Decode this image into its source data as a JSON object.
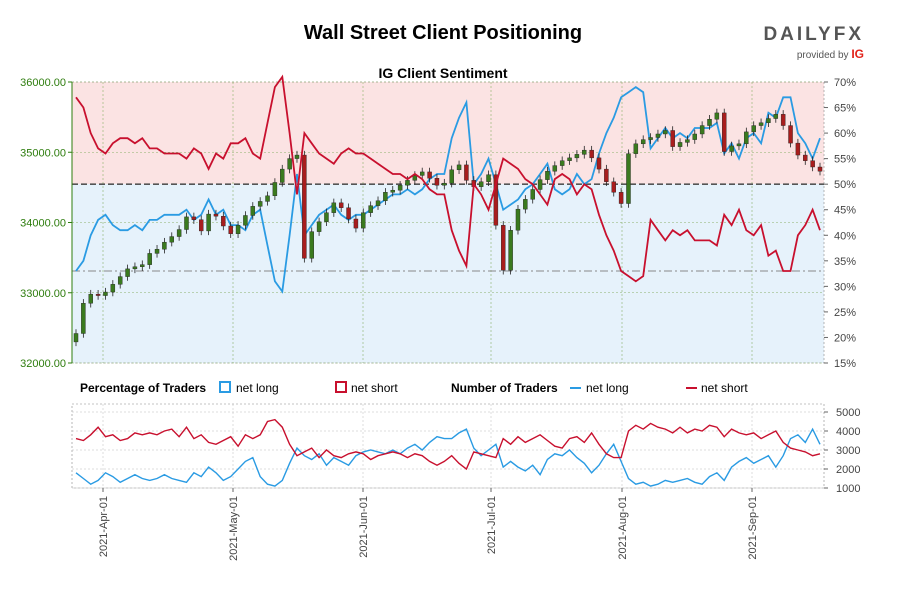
{
  "header": {
    "title": "Wall Street Client Positioning",
    "logo_text": "DAILYFX",
    "provided_by": "provided by",
    "provider": "IG"
  },
  "colors": {
    "net_long": "#2a9be3",
    "net_short": "#c8102e",
    "up_candle": "#3a7a1e",
    "down_candle": "#a81d1d",
    "short_zone": "#fbe3e3",
    "long_zone": "#e6f2fb",
    "left_axis": "#2e7d0e"
  },
  "chart_data": [
    {
      "type": "candlestick+line",
      "title": "IG Client Sentiment",
      "left_axis": {
        "ticks": [
          "32000.00",
          "33000.00",
          "34000.00",
          "35000.00",
          "36000.00"
        ],
        "ylim": [
          32000,
          36000
        ]
      },
      "right_axis": {
        "ticks": [
          "15%",
          "20%",
          "25%",
          "30%",
          "35%",
          "40%",
          "45%",
          "50%",
          "55%",
          "60%",
          "65%",
          "70%"
        ],
        "ylim": [
          15,
          70
        ]
      },
      "reference_levels": {
        "fifty_percent": 50,
        "dashed_level": 33
      },
      "price": [
        32420,
        32850,
        32980,
        32960,
        33010,
        33120,
        33230,
        33340,
        33370,
        33400,
        33560,
        33620,
        33720,
        33800,
        33900,
        34080,
        34040,
        33880,
        34120,
        34090,
        33950,
        33840,
        33960,
        34100,
        34230,
        34300,
        34380,
        34570,
        34760,
        34910,
        34960,
        33490,
        33870,
        34010,
        34140,
        34280,
        34210,
        34050,
        33920,
        34140,
        34240,
        34310,
        34430,
        34460,
        34530,
        34600,
        34670,
        34720,
        34630,
        34530,
        34560,
        34750,
        34820,
        34600,
        34510,
        34580,
        34680,
        33960,
        33320,
        33890,
        34190,
        34330,
        34470,
        34610,
        34730,
        34810,
        34880,
        34920,
        34970,
        35030,
        34920,
        34760,
        34580,
        34430,
        34270,
        34980,
        35120,
        35180,
        35210,
        35260,
        35310,
        35080,
        35140,
        35180,
        35260,
        35380,
        35470,
        35560,
        35010,
        35090,
        35120,
        35290,
        35380,
        35420,
        35480,
        35540,
        35380,
        35130,
        34960,
        34880,
        34790,
        34730
      ],
      "net_long_pct": [
        33,
        35,
        40,
        43,
        44,
        42,
        41,
        41,
        42,
        41,
        43,
        43,
        44,
        44,
        44,
        45,
        43,
        44,
        47,
        44,
        45,
        42,
        42,
        41,
        44,
        45,
        38,
        31,
        29,
        40,
        52,
        40,
        42,
        44,
        45,
        46,
        44,
        43,
        44,
        44,
        45,
        46,
        47,
        48,
        48,
        49,
        48,
        49,
        51,
        52,
        52,
        59,
        63,
        66,
        50,
        52,
        55,
        50,
        45,
        46,
        47,
        49,
        50,
        52,
        54,
        49,
        48,
        49,
        52,
        50,
        51,
        56,
        60,
        63,
        67,
        68,
        69,
        68,
        57,
        59,
        61,
        59,
        60,
        59,
        61,
        61,
        61,
        62,
        56,
        58,
        55,
        59,
        60,
        58,
        64,
        63,
        67,
        67,
        60,
        58,
        55,
        59
      ],
      "net_short_pct": [
        67,
        65,
        60,
        57,
        56,
        58,
        59,
        59,
        58,
        59,
        57,
        57,
        56,
        56,
        56,
        55,
        57,
        56,
        53,
        56,
        55,
        58,
        58,
        59,
        56,
        55,
        62,
        69,
        71,
        60,
        48,
        60,
        58,
        56,
        55,
        54,
        56,
        57,
        56,
        56,
        55,
        54,
        53,
        52,
        52,
        51,
        52,
        51,
        49,
        48,
        48,
        41,
        37,
        34,
        50,
        48,
        45,
        50,
        55,
        54,
        53,
        51,
        50,
        48,
        46,
        51,
        52,
        51,
        48,
        50,
        49,
        44,
        40,
        37,
        33,
        32,
        31,
        32,
        43,
        41,
        39,
        41,
        40,
        41,
        39,
        39,
        39,
        38,
        44,
        42,
        45,
        41,
        40,
        42,
        36,
        37,
        33,
        33,
        40,
        42,
        45,
        41
      ],
      "x_labels": [
        "2021-Apr-01",
        "2021-May-01",
        "2021-Jun-01",
        "2021-Jul-01",
        "2021-Aug-01",
        "2021-Sep-01"
      ]
    },
    {
      "type": "line",
      "legend_groups": [
        "Percentage of Traders",
        "Number of Traders"
      ],
      "legend": [
        {
          "label": "net long",
          "kind": "box"
        },
        {
          "label": "net short",
          "kind": "box"
        },
        {
          "label": "net long",
          "kind": "line"
        },
        {
          "label": "net short",
          "kind": "line"
        }
      ],
      "y_axis": {
        "ticks": [
          "1000",
          "2000",
          "3000",
          "4000",
          "5000"
        ],
        "ylim": [
          1000,
          5000
        ]
      },
      "series": [
        {
          "name": "net long",
          "values": [
            1800,
            1500,
            1200,
            1400,
            1800,
            1600,
            1300,
            1500,
            1700,
            1500,
            1400,
            1500,
            1700,
            1500,
            1400,
            1300,
            1800,
            1600,
            2100,
            1800,
            1400,
            1600,
            2000,
            2400,
            2600,
            1600,
            1200,
            1100,
            1400,
            2300,
            3100,
            2700,
            2500,
            2800,
            2200,
            2600,
            2400,
            2200,
            2700,
            2900,
            3000,
            2900,
            2800,
            3000,
            2800,
            3100,
            3300,
            3000,
            3400,
            3700,
            3600,
            3600,
            3900,
            4100,
            3100,
            2700,
            3000,
            3300,
            2100,
            2400,
            2100,
            1900,
            2200,
            1700,
            2500,
            2800,
            2700,
            3000,
            2600,
            2300,
            1800,
            2200,
            2800,
            3300,
            2400,
            1500,
            1200,
            1300,
            1100,
            1200,
            1400,
            1300,
            1400,
            1500,
            1300,
            1200,
            1600,
            1800,
            1400,
            2100,
            2400,
            2600,
            2300,
            2500,
            2700,
            2100,
            2700,
            3600,
            3800,
            3400,
            4100,
            3300
          ]
        },
        {
          "name": "net short",
          "values": [
            3600,
            3500,
            3800,
            4200,
            3700,
            3800,
            3500,
            3600,
            3900,
            3800,
            3900,
            3800,
            4000,
            4100,
            3700,
            4200,
            3600,
            3800,
            3400,
            3300,
            3500,
            3700,
            3200,
            3800,
            3600,
            3800,
            4500,
            4600,
            4200,
            3300,
            2700,
            2900,
            3100,
            2600,
            3000,
            2700,
            2600,
            2800,
            2900,
            2800,
            2500,
            2700,
            2800,
            2900,
            2800,
            2600,
            2800,
            2700,
            2400,
            2200,
            2400,
            2700,
            2300,
            2000,
            2900,
            2800,
            2700,
            2600,
            3600,
            3300,
            3700,
            3400,
            3600,
            3800,
            3500,
            3200,
            3100,
            3600,
            3700,
            3400,
            3900,
            3300,
            2800,
            2600,
            2600,
            4000,
            4300,
            4100,
            4400,
            4200,
            4100,
            3900,
            4200,
            3900,
            4100,
            4000,
            4300,
            4200,
            3700,
            4100,
            3900,
            3800,
            3900,
            3600,
            3800,
            4000,
            3400,
            3100,
            3000,
            2900,
            2700,
            2800
          ]
        }
      ]
    }
  ]
}
